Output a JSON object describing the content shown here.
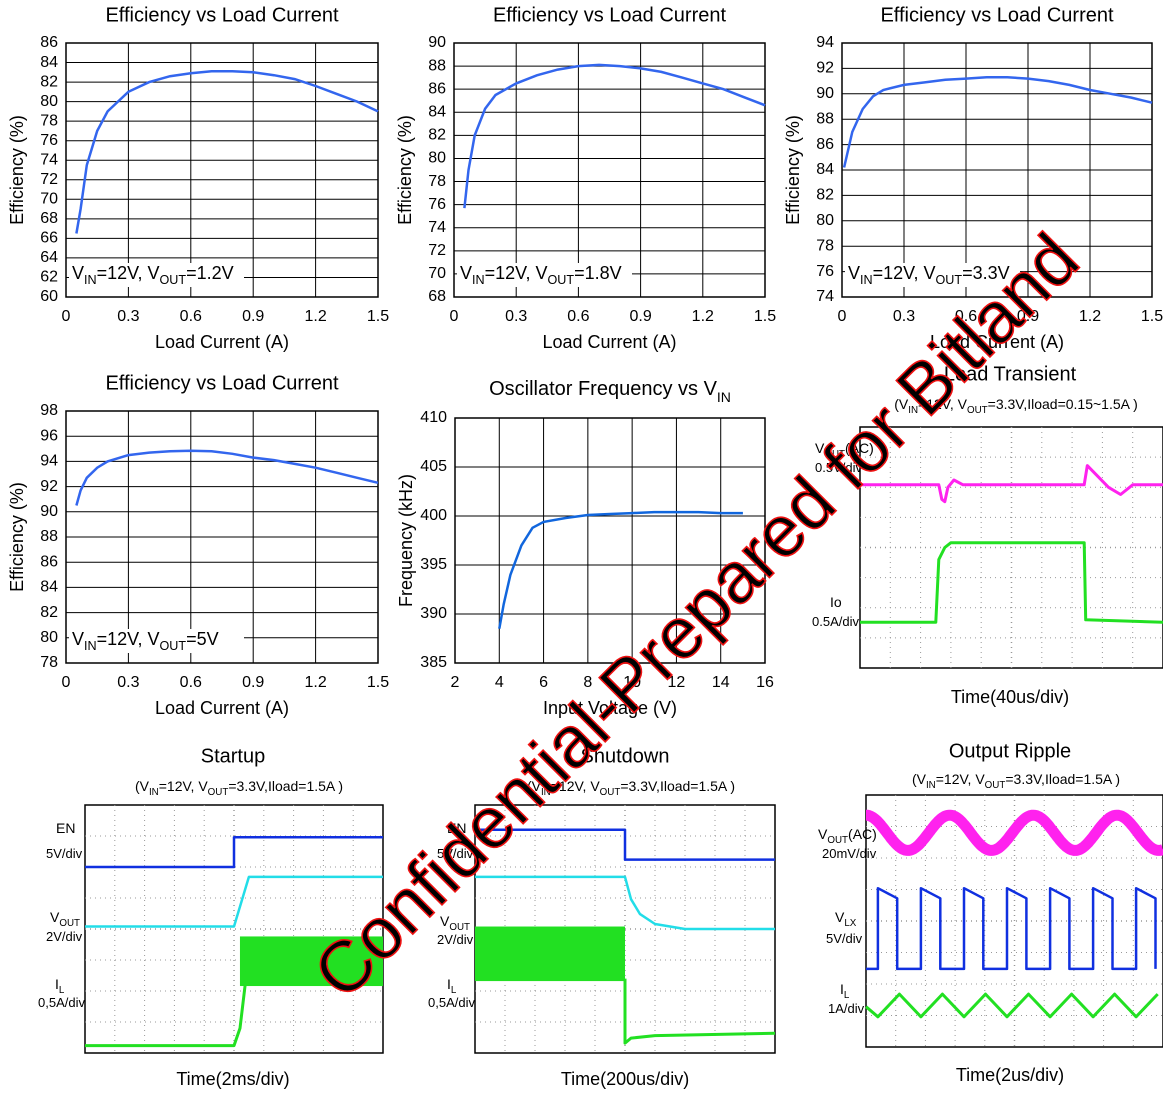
{
  "chart_data": [
    {
      "type": "line",
      "title": "Efficiency vs Load Current",
      "xlabel": "Load Current (A)",
      "ylabel": "Efficiency (%)",
      "annotation": [
        "V",
        "IN",
        "=12V,  V",
        "OUT",
        "=1.2V"
      ],
      "color": "#3366ee",
      "grid": true,
      "x": [
        0.05,
        0.07,
        0.1,
        0.15,
        0.2,
        0.3,
        0.4,
        0.5,
        0.6,
        0.7,
        0.8,
        0.9,
        1.0,
        1.1,
        1.2,
        1.3,
        1.4,
        1.5
      ],
      "values": [
        66.5,
        69,
        73.5,
        77,
        79,
        81,
        82,
        82.6,
        82.9,
        83.1,
        83.1,
        83.0,
        82.7,
        82.3,
        81.6,
        80.8,
        80,
        79
      ],
      "xlim": [
        0,
        1.5
      ],
      "xticks": [
        0,
        0.3,
        0.6,
        0.9,
        1.2,
        1.5
      ],
      "ylim": [
        60,
        86
      ],
      "yticks": [
        60,
        62,
        64,
        66,
        68,
        70,
        72,
        74,
        76,
        78,
        80,
        82,
        84,
        86
      ]
    },
    {
      "type": "line",
      "title": "Efficiency vs Load Current",
      "xlabel": "Load Current (A)",
      "ylabel": "Efficiency (%)",
      "annotation": [
        "V",
        "IN",
        "=12V,  V",
        "OUT",
        "=1.8V"
      ],
      "color": "#3366ee",
      "grid": true,
      "x": [
        0.05,
        0.07,
        0.1,
        0.15,
        0.2,
        0.3,
        0.4,
        0.5,
        0.6,
        0.7,
        0.8,
        0.9,
        1.0,
        1.1,
        1.2,
        1.3,
        1.4,
        1.5
      ],
      "values": [
        75.7,
        79,
        82,
        84.3,
        85.5,
        86.5,
        87.2,
        87.7,
        88,
        88.1,
        88,
        87.8,
        87.5,
        87,
        86.5,
        86,
        85.3,
        84.6
      ],
      "xlim": [
        0,
        1.5
      ],
      "xticks": [
        0,
        0.3,
        0.6,
        0.9,
        1.2,
        1.5
      ],
      "ylim": [
        68,
        90
      ],
      "yticks": [
        68,
        70,
        72,
        74,
        76,
        78,
        80,
        82,
        84,
        86,
        88,
        90
      ]
    },
    {
      "type": "line",
      "title": "Efficiency vs Load Current",
      "xlabel": "Load Current (A)",
      "ylabel": "Efficiency (%)",
      "annotation": [
        "V",
        "IN",
        "=12V,  V",
        "OUT",
        "=3.3V"
      ],
      "color": "#3366ee",
      "grid": true,
      "x": [
        0.01,
        0.05,
        0.1,
        0.15,
        0.2,
        0.3,
        0.4,
        0.5,
        0.6,
        0.7,
        0.8,
        0.9,
        1.0,
        1.1,
        1.2,
        1.3,
        1.4,
        1.5
      ],
      "values": [
        84.2,
        87,
        88.8,
        89.8,
        90.3,
        90.7,
        90.9,
        91.1,
        91.2,
        91.3,
        91.3,
        91.2,
        91,
        90.7,
        90.3,
        90,
        89.7,
        89.3
      ],
      "xlim": [
        0,
        1.5
      ],
      "xticks": [
        0,
        0.3,
        0.6,
        0.9,
        1.2,
        1.5
      ],
      "ylim": [
        74,
        94
      ],
      "yticks": [
        74,
        76,
        78,
        80,
        82,
        84,
        86,
        88,
        90,
        92,
        94
      ]
    },
    {
      "type": "line",
      "title": "Efficiency vs Load Current",
      "xlabel": "Load Current (A)",
      "ylabel": "Efficiency (%)",
      "annotation": [
        "V",
        "IN",
        "=12V,  V",
        "OUT",
        "=5V"
      ],
      "color": "#3366ee",
      "grid": true,
      "x": [
        0.05,
        0.07,
        0.1,
        0.15,
        0.2,
        0.3,
        0.4,
        0.5,
        0.6,
        0.7,
        0.8,
        0.9,
        1.0,
        1.1,
        1.2,
        1.3,
        1.4,
        1.5
      ],
      "values": [
        90.5,
        91.7,
        92.7,
        93.5,
        94,
        94.5,
        94.7,
        94.8,
        94.85,
        94.8,
        94.6,
        94.3,
        94.1,
        93.8,
        93.5,
        93.1,
        92.7,
        92.3
      ],
      "xlim": [
        0,
        1.5
      ],
      "xticks": [
        0,
        0.3,
        0.6,
        0.9,
        1.2,
        1.5
      ],
      "ylim": [
        78,
        98
      ],
      "yticks": [
        78,
        80,
        82,
        84,
        86,
        88,
        90,
        92,
        94,
        96,
        98
      ]
    },
    {
      "type": "line",
      "title": [
        "Oscillator Frequency vs V",
        "IN"
      ],
      "xlabel": "Input Voltage (V)",
      "ylabel": "Frequency (kHz)",
      "color": "#1166dd",
      "grid": true,
      "x": [
        4,
        4.2,
        4.5,
        5,
        5.5,
        6,
        7,
        8,
        9,
        10,
        11,
        12,
        13,
        14,
        15
      ],
      "values": [
        388.5,
        391,
        394,
        397,
        398.8,
        399.4,
        399.8,
        400.1,
        400.2,
        400.3,
        400.4,
        400.4,
        400.4,
        400.3,
        400.3
      ],
      "xlim": [
        2,
        16
      ],
      "xticks": [
        2,
        4,
        6,
        8,
        10,
        12,
        14,
        16
      ],
      "ylim": [
        385,
        410
      ],
      "yticks": [
        385,
        390,
        395,
        400,
        405,
        410
      ]
    }
  ],
  "scopes": [
    {
      "title": "Load Transient",
      "subtitle": [
        "(V",
        "IN",
        "=12V, V",
        "OUT",
        "=3.3V,Iload=0.15~1.5A )"
      ],
      "labels": [
        [
          "V",
          "OUT",
          "(AC)"
        ],
        [
          "0.5V/div"
        ],
        [
          "Io"
        ],
        [
          "0.5A/div"
        ]
      ],
      "time": "Time(40us/div)"
    },
    {
      "title": "Startup",
      "subtitle": [
        "(V",
        "IN",
        "=12V, V",
        "OUT",
        "=3.3V,Iload=1.5A )"
      ],
      "labels": [
        [
          "EN"
        ],
        [
          "5V/div"
        ],
        [
          "V",
          "OUT"
        ],
        [
          "2V/div"
        ],
        [
          "I",
          "L"
        ],
        [
          "0,5A/div"
        ]
      ],
      "time": "Time(2ms/div)"
    },
    {
      "title": "Shutdown",
      "subtitle": [
        "(V",
        "IN",
        "=12V, V",
        "OUT",
        "=3.3V,Iload=1.5A )"
      ],
      "labels": [
        [
          "EN"
        ],
        [
          "5V/div"
        ],
        [
          "V",
          "OUT"
        ],
        [
          "2V/div"
        ],
        [
          "I",
          "L"
        ],
        [
          "0,5A/div"
        ]
      ],
      "time": "Time(200us/div)"
    },
    {
      "title": "Output Ripple",
      "subtitle": [
        "(V",
        "IN",
        "=12V, V",
        "OUT",
        "=3.3V,Iload=1.5A )"
      ],
      "labels": [
        [
          "V",
          "OUT",
          "(AC)"
        ],
        [
          "20mV/div"
        ],
        [
          "V",
          "LX"
        ],
        [
          "5V/div"
        ],
        [
          "I",
          "L"
        ],
        [
          "1A/div"
        ]
      ],
      "time": "Time(2us/div)"
    }
  ],
  "watermark": "Confidential-Prepared for Bitland"
}
